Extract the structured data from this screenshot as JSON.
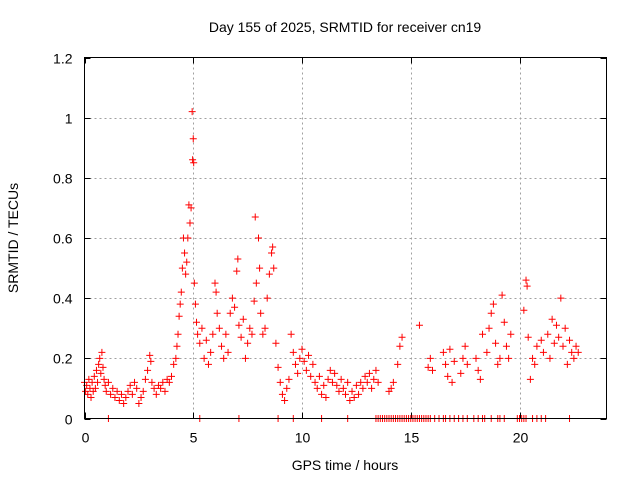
{
  "chart_data": {
    "type": "scatter",
    "title": "Day 155 of 2025, SRMTID for receiver cn19",
    "xlabel": "GPS time / hours",
    "ylabel": "SRMTID / TECUs",
    "xlim": [
      0,
      24
    ],
    "ylim": [
      0,
      1.2
    ],
    "xticks": [
      0,
      5,
      10,
      15,
      20
    ],
    "xtick_labels": [
      "0",
      "5",
      "10",
      "15",
      "20"
    ],
    "yticks": [
      0,
      0.2,
      0.4,
      0.6,
      0.8,
      1.0,
      1.2
    ],
    "ytick_labels": [
      "0",
      "0.2",
      "0.4",
      "0.6",
      "0.8",
      "1",
      "1.2"
    ],
    "grid": true,
    "marker": "plus",
    "color": "#ff0000",
    "series": [
      {
        "name": "SRMTID",
        "points": [
          [
            0.0,
            0.12
          ],
          [
            0.05,
            0.09
          ],
          [
            0.1,
            0.11
          ],
          [
            0.15,
            0.08
          ],
          [
            0.2,
            0.13
          ],
          [
            0.25,
            0.1
          ],
          [
            0.3,
            0.07
          ],
          [
            0.35,
            0.12
          ],
          [
            0.4,
            0.09
          ],
          [
            0.45,
            0.14
          ],
          [
            0.5,
            0.1
          ],
          [
            0.55,
            0.16
          ],
          [
            0.6,
            0.12
          ],
          [
            0.65,
            0.18
          ],
          [
            0.7,
            0.2
          ],
          [
            0.75,
            0.15
          ],
          [
            0.8,
            0.22
          ],
          [
            0.85,
            0.17
          ],
          [
            0.9,
            0.13
          ],
          [
            0.95,
            0.11
          ],
          [
            1.0,
            0.09
          ],
          [
            1.1,
            0.12
          ],
          [
            1.2,
            0.08
          ],
          [
            1.3,
            0.1
          ],
          [
            1.4,
            0.07
          ],
          [
            1.5,
            0.09
          ],
          [
            1.6,
            0.06
          ],
          [
            1.7,
            0.08
          ],
          [
            1.8,
            0.05
          ],
          [
            1.9,
            0.07
          ],
          [
            2.0,
            0.09
          ],
          [
            2.1,
            0.11
          ],
          [
            2.2,
            0.08
          ],
          [
            2.3,
            0.12
          ],
          [
            2.4,
            0.1
          ],
          [
            2.5,
            0.05
          ],
          [
            2.6,
            0.07
          ],
          [
            2.7,
            0.09
          ],
          [
            2.8,
            0.13
          ],
          [
            2.9,
            0.16
          ],
          [
            3.0,
            0.21
          ],
          [
            3.05,
            0.19
          ],
          [
            3.1,
            0.12
          ],
          [
            3.2,
            0.1
          ],
          [
            3.3,
            0.08
          ],
          [
            3.4,
            0.11
          ],
          [
            3.5,
            0.1
          ],
          [
            3.6,
            0.12
          ],
          [
            3.7,
            0.09
          ],
          [
            3.8,
            0.13
          ],
          [
            3.9,
            0.12
          ],
          [
            4.0,
            0.14
          ],
          [
            4.1,
            0.18
          ],
          [
            4.2,
            0.2
          ],
          [
            4.25,
            0.24
          ],
          [
            4.3,
            0.28
          ],
          [
            4.35,
            0.34
          ],
          [
            4.4,
            0.38
          ],
          [
            4.45,
            0.42
          ],
          [
            4.5,
            0.5
          ],
          [
            4.55,
            0.6
          ],
          [
            4.6,
            0.55
          ],
          [
            4.65,
            0.48
          ],
          [
            4.7,
            0.52
          ],
          [
            4.75,
            0.6
          ],
          [
            4.8,
            0.71
          ],
          [
            4.85,
            0.65
          ],
          [
            4.9,
            0.7
          ],
          [
            4.95,
            1.02
          ],
          [
            4.97,
            0.86
          ],
          [
            5.0,
            0.93
          ],
          [
            5.02,
            0.85
          ],
          [
            5.05,
            0.45
          ],
          [
            5.1,
            0.38
          ],
          [
            5.15,
            0.32
          ],
          [
            5.2,
            0.28
          ],
          [
            5.3,
            0.25
          ],
          [
            5.4,
            0.3
          ],
          [
            5.5,
            0.2
          ],
          [
            5.6,
            0.26
          ],
          [
            5.7,
            0.18
          ],
          [
            5.8,
            0.22
          ],
          [
            5.9,
            0.28
          ],
          [
            6.0,
            0.45
          ],
          [
            6.05,
            0.42
          ],
          [
            6.1,
            0.35
          ],
          [
            6.2,
            0.3
          ],
          [
            6.3,
            0.24
          ],
          [
            6.4,
            0.2
          ],
          [
            6.5,
            0.28
          ],
          [
            6.6,
            0.22
          ],
          [
            6.7,
            0.35
          ],
          [
            6.8,
            0.4
          ],
          [
            6.9,
            0.37
          ],
          [
            7.0,
            0.49
          ],
          [
            7.05,
            0.53
          ],
          [
            7.1,
            0.31
          ],
          [
            7.2,
            0.27
          ],
          [
            7.3,
            0.33
          ],
          [
            7.4,
            0.2
          ],
          [
            7.5,
            0.25
          ],
          [
            7.6,
            0.3
          ],
          [
            7.7,
            0.28
          ],
          [
            7.8,
            0.39
          ],
          [
            7.85,
            0.67
          ],
          [
            7.9,
            0.45
          ],
          [
            8.0,
            0.6
          ],
          [
            8.05,
            0.5
          ],
          [
            8.1,
            0.35
          ],
          [
            8.2,
            0.28
          ],
          [
            8.3,
            0.3
          ],
          [
            8.4,
            0.4
          ],
          [
            8.5,
            0.48
          ],
          [
            8.6,
            0.55
          ],
          [
            8.65,
            0.57
          ],
          [
            8.7,
            0.5
          ],
          [
            8.8,
            0.25
          ],
          [
            8.9,
            0.17
          ],
          [
            9.0,
            0.12
          ],
          [
            9.1,
            0.08
          ],
          [
            9.2,
            0.06
          ],
          [
            9.3,
            0.1
          ],
          [
            9.4,
            0.13
          ],
          [
            9.5,
            0.28
          ],
          [
            9.6,
            0.22
          ],
          [
            9.7,
            0.18
          ],
          [
            9.8,
            0.15
          ],
          [
            9.9,
            0.2
          ],
          [
            10.0,
            0.23
          ],
          [
            10.1,
            0.19
          ],
          [
            10.2,
            0.16
          ],
          [
            10.3,
            0.21
          ],
          [
            10.4,
            0.14
          ],
          [
            10.5,
            0.18
          ],
          [
            10.6,
            0.12
          ],
          [
            10.7,
            0.1
          ],
          [
            10.8,
            0.14
          ],
          [
            10.9,
            0.08
          ],
          [
            11.0,
            0.11
          ],
          [
            11.1,
            0.07
          ],
          [
            11.2,
            0.13
          ],
          [
            11.3,
            0.16
          ],
          [
            11.4,
            0.12
          ],
          [
            11.5,
            0.15
          ],
          [
            11.6,
            0.11
          ],
          [
            11.7,
            0.09
          ],
          [
            11.8,
            0.13
          ],
          [
            11.9,
            0.1
          ],
          [
            12.0,
            0.08
          ],
          [
            12.1,
            0.12
          ],
          [
            12.2,
            0.06
          ],
          [
            12.3,
            0.09
          ],
          [
            12.4,
            0.07
          ],
          [
            12.5,
            0.11
          ],
          [
            12.6,
            0.08
          ],
          [
            12.7,
            0.12
          ],
          [
            12.8,
            0.1
          ],
          [
            12.9,
            0.14
          ],
          [
            13.0,
            0.12
          ],
          [
            13.1,
            0.15
          ],
          [
            13.2,
            0.1
          ],
          [
            13.3,
            0.13
          ],
          [
            13.4,
            0.16
          ],
          [
            13.5,
            0.12
          ],
          [
            14.0,
            0.09
          ],
          [
            14.1,
            0.1
          ],
          [
            14.2,
            0.12
          ],
          [
            14.4,
            0.18
          ],
          [
            14.5,
            0.24
          ],
          [
            14.6,
            0.27
          ],
          [
            15.8,
            0.17
          ],
          [
            15.9,
            0.2
          ],
          [
            16.0,
            0.16
          ],
          [
            15.4,
            0.31
          ],
          [
            16.5,
            0.22
          ],
          [
            16.6,
            0.18
          ],
          [
            16.7,
            0.14
          ],
          [
            16.8,
            0.23
          ],
          [
            16.9,
            0.12
          ],
          [
            17.0,
            0.19
          ],
          [
            17.3,
            0.15
          ],
          [
            17.4,
            0.2
          ],
          [
            17.5,
            0.24
          ],
          [
            17.6,
            0.18
          ],
          [
            18.0,
            0.2
          ],
          [
            18.1,
            0.16
          ],
          [
            18.2,
            0.13
          ],
          [
            18.3,
            0.28
          ],
          [
            18.5,
            0.22
          ],
          [
            18.6,
            0.3
          ],
          [
            18.7,
            0.35
          ],
          [
            18.8,
            0.38
          ],
          [
            18.9,
            0.25
          ],
          [
            19.0,
            0.18
          ],
          [
            19.1,
            0.2
          ],
          [
            19.2,
            0.41
          ],
          [
            19.3,
            0.32
          ],
          [
            19.4,
            0.24
          ],
          [
            19.5,
            0.2
          ],
          [
            19.6,
            0.28
          ],
          [
            20.2,
            0.36
          ],
          [
            20.3,
            0.46
          ],
          [
            20.35,
            0.44
          ],
          [
            20.4,
            0.27
          ],
          [
            20.5,
            0.13
          ],
          [
            20.6,
            0.2
          ],
          [
            20.7,
            0.18
          ],
          [
            20.8,
            0.24
          ],
          [
            21.0,
            0.26
          ],
          [
            21.1,
            0.22
          ],
          [
            21.3,
            0.28
          ],
          [
            21.4,
            0.2
          ],
          [
            21.5,
            0.33
          ],
          [
            21.6,
            0.25
          ],
          [
            21.7,
            0.31
          ],
          [
            21.8,
            0.27
          ],
          [
            21.9,
            0.4
          ],
          [
            22.0,
            0.24
          ],
          [
            22.1,
            0.3
          ],
          [
            22.2,
            0.18
          ],
          [
            22.3,
            0.26
          ],
          [
            22.4,
            0.22
          ],
          [
            22.5,
            0.2
          ],
          [
            22.6,
            0.24
          ],
          [
            22.7,
            0.22
          ]
        ],
        "zero_points": [
          1.1,
          5.3,
          7.1,
          8.9,
          9.6,
          10.9,
          12.1,
          13.4,
          13.5,
          13.6,
          13.7,
          13.8,
          13.9,
          14.0,
          14.1,
          14.2,
          14.3,
          14.4,
          14.5,
          14.6,
          14.7,
          14.8,
          14.9,
          15.0,
          15.1,
          15.2,
          15.3,
          15.4,
          15.5,
          15.6,
          15.7,
          15.8,
          15.9,
          16.1,
          16.3,
          16.5,
          16.6,
          16.8,
          17.0,
          17.2,
          17.4,
          17.6,
          17.9,
          18.1,
          18.3,
          18.4,
          18.7,
          19.0,
          19.1,
          19.3,
          19.9,
          20.0,
          20.1,
          20.2,
          20.3,
          20.6,
          20.8,
          21.0,
          21.2,
          22.3
        ]
      }
    ]
  }
}
